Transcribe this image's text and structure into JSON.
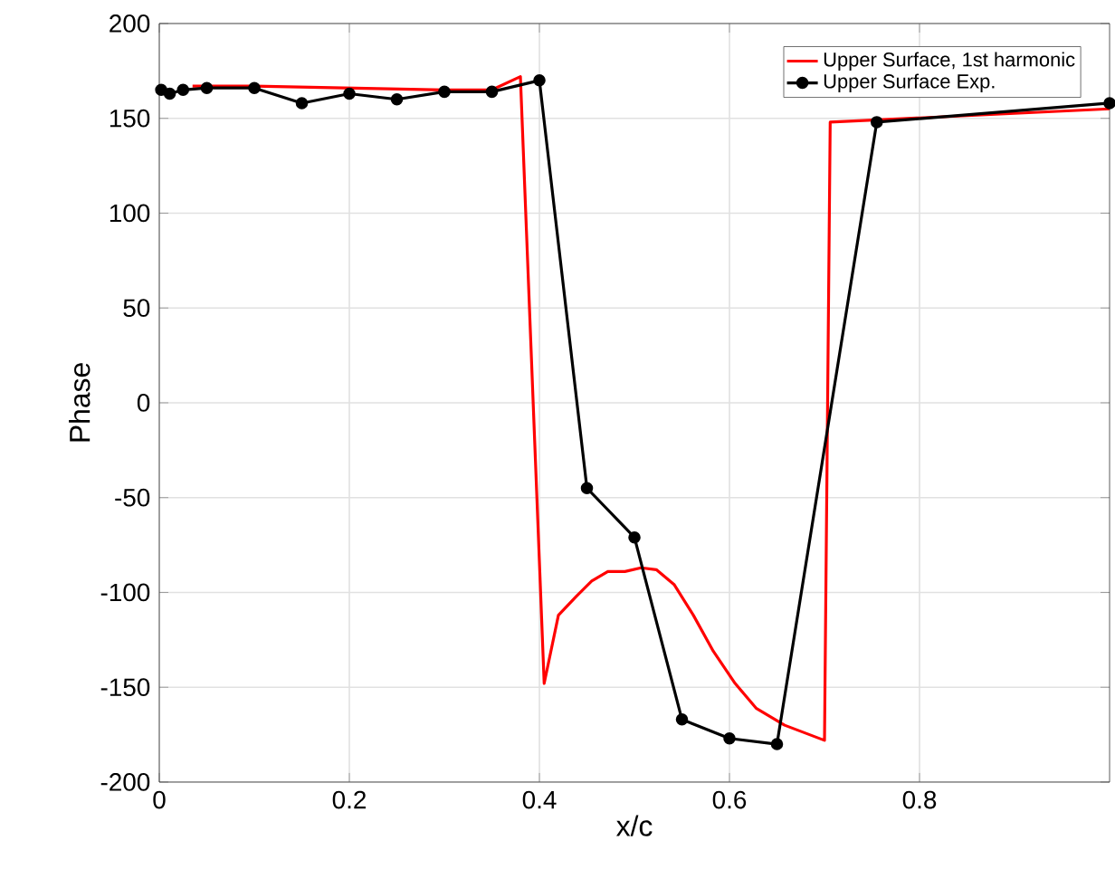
{
  "chart_data": {
    "type": "line",
    "xlabel": "x/c",
    "ylabel": "Phase",
    "xlim": [
      0,
      1
    ],
    "ylim": [
      -200,
      200
    ],
    "xticks": [
      0,
      0.2,
      0.4,
      0.6,
      0.8
    ],
    "yticks": [
      -200,
      -150,
      -100,
      -50,
      0,
      50,
      100,
      150,
      200
    ],
    "grid": true,
    "legend": "top right",
    "series": [
      {
        "name": "Upper Surface, 1st harmonic",
        "color": "#ff0000",
        "marker": "none",
        "x": [
          0.035,
          0.1,
          0.2,
          0.3,
          0.35,
          0.38,
          0.395,
          0.405,
          0.42,
          0.439,
          0.455,
          0.472,
          0.49,
          0.507,
          0.523,
          0.542,
          0.562,
          0.583,
          0.606,
          0.628,
          0.658,
          0.7,
          0.706,
          1.0
        ],
        "values": [
          167,
          167,
          166,
          165,
          165,
          172,
          -20,
          -148,
          -112,
          -102,
          -94,
          -89,
          -89,
          -87,
          -88,
          -96,
          -112,
          -131,
          -148,
          -161,
          -170,
          -178,
          148,
          155
        ]
      },
      {
        "name": "Upper Surface Exp.",
        "color": "#000000",
        "marker": "circle",
        "x": [
          0.002,
          0.011,
          0.025,
          0.05,
          0.1,
          0.15,
          0.2,
          0.25,
          0.3,
          0.35,
          0.4,
          0.45,
          0.5,
          0.55,
          0.6,
          0.65,
          0.755,
          1.0
        ],
        "values": [
          165,
          163,
          165,
          166,
          166,
          158,
          163,
          160,
          164,
          164,
          170,
          -45,
          -71,
          -167,
          -177,
          -180,
          148,
          158
        ]
      }
    ]
  }
}
